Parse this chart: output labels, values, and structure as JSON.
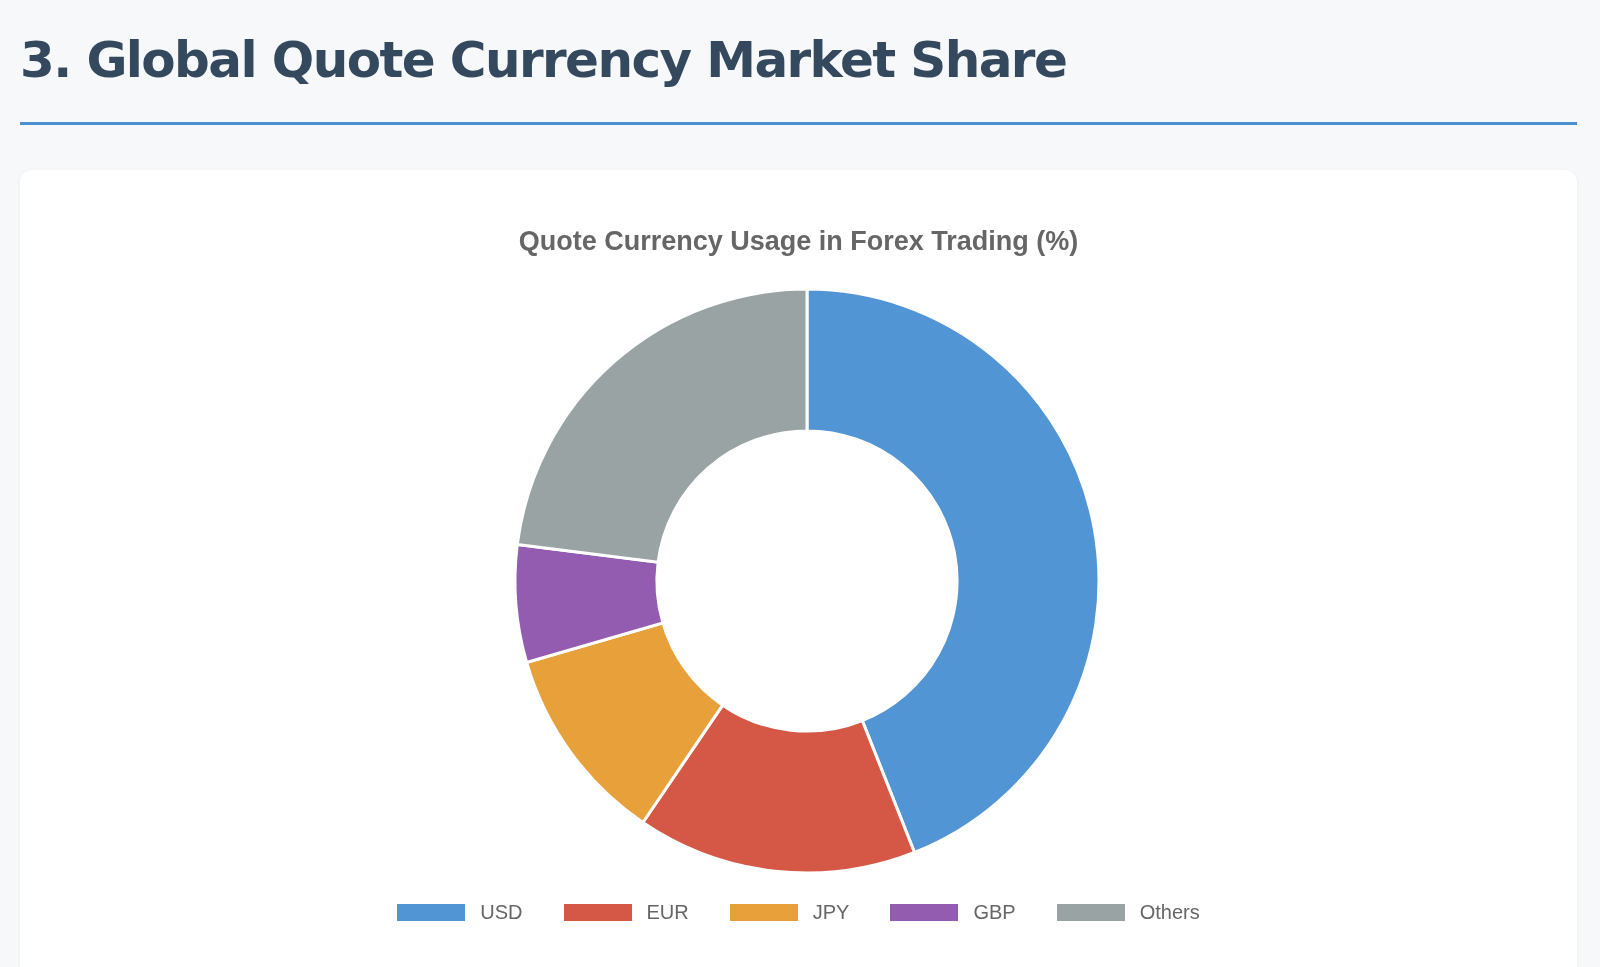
{
  "chart_data": {
    "type": "donut",
    "title": "3. Global Quote Currency Market Share",
    "subtitle": "Quote Currency Usage in Forex Trading (%)",
    "categories": [
      "USD",
      "EUR",
      "JPY",
      "GBP",
      "Others"
    ],
    "values": [
      44,
      15.5,
      11,
      6.5,
      23
    ],
    "colors": [
      "#5195d5",
      "#d55745",
      "#e8a13a",
      "#935cb0",
      "#99a3a4"
    ],
    "legend": "bottom"
  }
}
